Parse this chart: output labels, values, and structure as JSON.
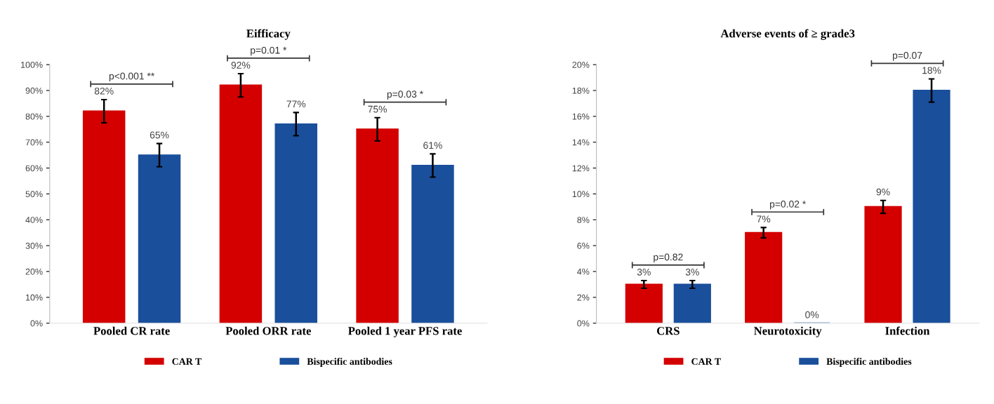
{
  "chart_data": [
    {
      "type": "bar",
      "title": "Eifficacy",
      "categories": [
        "Pooled CR rate",
        "Pooled ORR rate",
        "Pooled 1 year PFS rate"
      ],
      "series": [
        {
          "name": "CAR T",
          "color": "#d40000",
          "values": [
            82,
            92,
            75
          ],
          "errors": [
            4.5,
            4.5,
            4.5
          ],
          "value_labels": [
            "82%",
            "92%",
            "75%"
          ]
        },
        {
          "name": "Bispecific antibodies",
          "color": "#1a4f9c",
          "values": [
            65,
            77,
            61
          ],
          "errors": [
            4.5,
            4.5,
            4.5
          ],
          "value_labels": [
            "65%",
            "77%",
            "61%"
          ]
        }
      ],
      "ylim": [
        0,
        100
      ],
      "yticks": [
        {
          "value": 0,
          "label": "0%"
        },
        {
          "value": 10,
          "label": "10%"
        },
        {
          "value": 20,
          "label": "20%"
        },
        {
          "value": 30,
          "label": "30%"
        },
        {
          "value": 40,
          "label": "40%"
        },
        {
          "value": 50,
          "label": "50%"
        },
        {
          "value": 60,
          "label": "60%"
        },
        {
          "value": 70,
          "label": "70%"
        },
        {
          "value": 80,
          "label": "80%"
        },
        {
          "value": 90,
          "label": "90%"
        },
        {
          "value": 100,
          "label": "100%"
        }
      ],
      "annotations": [
        "p<0.001 **",
        "p=0.01 *",
        "p=0.03 *"
      ],
      "legend": "bottom",
      "grid": false
    },
    {
      "type": "bar",
      "title": "Adverse events of ≥ grade3",
      "categories": [
        "CRS",
        "Neurotoxicity",
        "Infection"
      ],
      "series": [
        {
          "name": "CAR T",
          "color": "#d40000",
          "values": [
            3,
            7,
            9
          ],
          "errors": [
            0.3,
            0.4,
            0.5
          ],
          "value_labels": [
            "3%",
            "7%",
            "9%"
          ]
        },
        {
          "name": "Bispecific antibodies",
          "color": "#1a4f9c",
          "values": [
            3,
            0,
            18
          ],
          "errors": [
            0.3,
            null,
            0.9
          ],
          "value_labels": [
            "3%",
            "0%",
            "18%"
          ]
        }
      ],
      "ylim": [
        0,
        20
      ],
      "yticks": [
        {
          "value": 0,
          "label": "0%"
        },
        {
          "value": 2,
          "label": "2%"
        },
        {
          "value": 4,
          "label": "4%"
        },
        {
          "value": 6,
          "label": "6%"
        },
        {
          "value": 8,
          "label": "8%"
        },
        {
          "value": 10,
          "label": "10%"
        },
        {
          "value": 12,
          "label": "12%"
        },
        {
          "value": 14,
          "label": "14%"
        },
        {
          "value": 16,
          "label": "16%"
        },
        {
          "value": 18,
          "label": "18%"
        },
        {
          "value": 20,
          "label": "20%"
        }
      ],
      "annotations": [
        "p=0.82",
        "p=0.02 *",
        "p=0.07"
      ],
      "legend": "bottom",
      "grid": false
    }
  ]
}
